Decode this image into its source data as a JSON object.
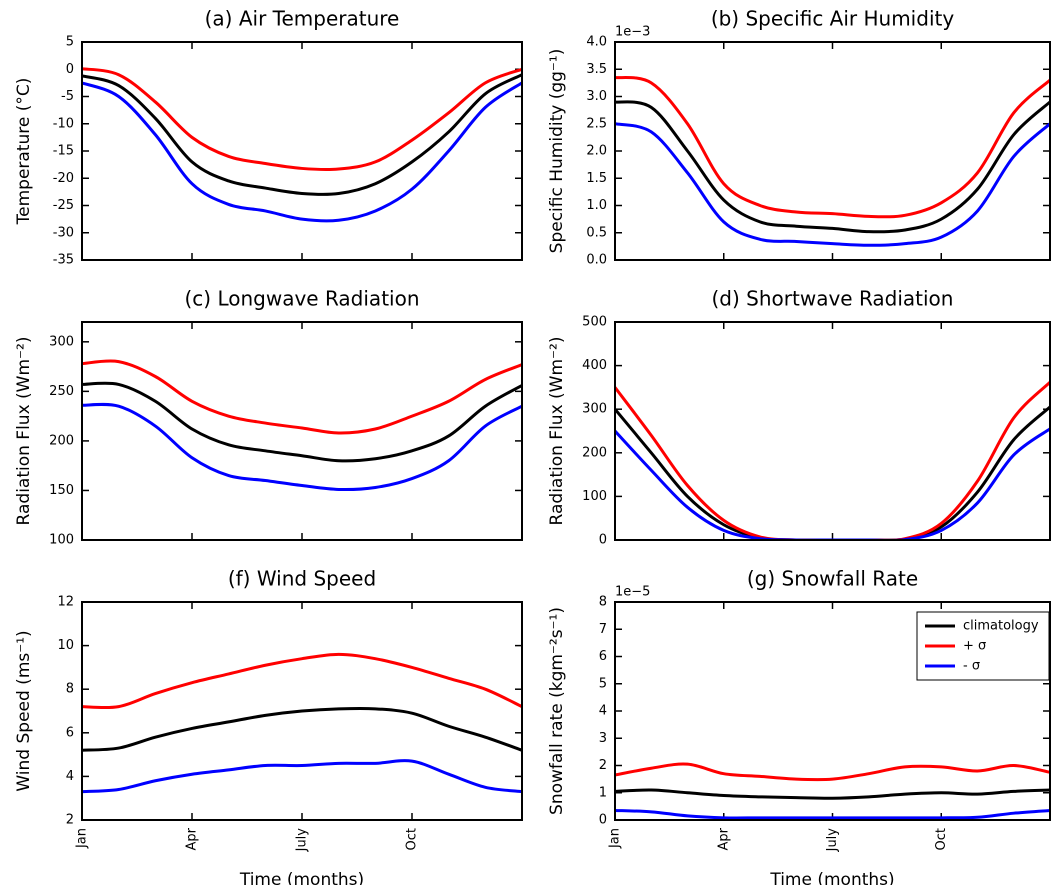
{
  "chart_data": [
    {
      "type": "line",
      "title": "(a) Air Temperature",
      "ylabel": "Temperature (°C)",
      "x": [
        0,
        1,
        2,
        3,
        4,
        5,
        6,
        7,
        8,
        9,
        10,
        11,
        12
      ],
      "xlim": [
        0,
        12
      ],
      "xticks": [
        0,
        3,
        6,
        9
      ],
      "ylim": [
        -35,
        5
      ],
      "yticks": [
        -35,
        -30,
        -25,
        -20,
        -15,
        -10,
        -5,
        0,
        5
      ],
      "series": [
        {
          "color": "#000000",
          "values": [
            -1.2,
            -3,
            -9,
            -17,
            -20.5,
            -21.8,
            -22.8,
            -22.8,
            -21,
            -17,
            -11.5,
            -4.5,
            -1
          ]
        },
        {
          "color": "#ff0000",
          "values": [
            0.1,
            -1,
            -6,
            -12.5,
            -16,
            -17.3,
            -18.2,
            -18.3,
            -17,
            -13,
            -8,
            -2.5,
            0
          ]
        },
        {
          "color": "#0000ff",
          "values": [
            -2.5,
            -5,
            -12,
            -21,
            -24.8,
            -26,
            -27.5,
            -27.7,
            -26,
            -22,
            -15,
            -7,
            -2.5
          ]
        }
      ]
    },
    {
      "type": "line",
      "title": "(b) Specific Air Humidity",
      "ylabel": "Specific Humidity (gg⁻¹)",
      "y_offset_label": "1e−3",
      "x": [
        0,
        1,
        2,
        3,
        4,
        5,
        6,
        7,
        8,
        9,
        10,
        11,
        12
      ],
      "xlim": [
        0,
        12
      ],
      "xticks": [
        0,
        3,
        6,
        9
      ],
      "ylim": [
        0,
        4
      ],
      "yticks": [
        {
          "value": 0,
          "label": "0.0"
        },
        {
          "value": 0.5,
          "label": "0.5"
        },
        {
          "value": 1,
          "label": "1.0"
        },
        {
          "value": 1.5,
          "label": "1.5"
        },
        {
          "value": 2,
          "label": "2.0"
        },
        {
          "value": 2.5,
          "label": "2.5"
        },
        {
          "value": 3,
          "label": "3.0"
        },
        {
          "value": 3.5,
          "label": "3.5"
        },
        {
          "value": 4,
          "label": "4.0"
        }
      ],
      "series": [
        {
          "color": "#000000",
          "values": [
            2.9,
            2.8,
            2.0,
            1.1,
            0.7,
            0.62,
            0.58,
            0.52,
            0.55,
            0.75,
            1.3,
            2.3,
            2.9
          ]
        },
        {
          "color": "#ff0000",
          "values": [
            3.35,
            3.25,
            2.5,
            1.4,
            1.0,
            0.88,
            0.85,
            0.8,
            0.82,
            1.05,
            1.6,
            2.7,
            3.3
          ]
        },
        {
          "color": "#0000ff",
          "values": [
            2.5,
            2.35,
            1.6,
            0.7,
            0.38,
            0.34,
            0.3,
            0.27,
            0.3,
            0.42,
            0.9,
            1.9,
            2.5
          ]
        }
      ]
    },
    {
      "type": "line",
      "title": "(c) Longwave Radiation",
      "ylabel": "Radiation Flux (Wm⁻²)",
      "x": [
        0,
        1,
        2,
        3,
        4,
        5,
        6,
        7,
        8,
        9,
        10,
        11,
        12
      ],
      "xlim": [
        0,
        12
      ],
      "xticks": [
        0,
        3,
        6,
        9
      ],
      "ylim": [
        100,
        320
      ],
      "yticks": [
        100,
        150,
        200,
        250,
        300
      ],
      "series": [
        {
          "color": "#000000",
          "values": [
            257,
            257,
            240,
            212,
            196,
            190,
            185,
            180,
            182,
            190,
            205,
            235,
            256
          ]
        },
        {
          "color": "#ff0000",
          "values": [
            278,
            280,
            265,
            240,
            225,
            218,
            213,
            208,
            212,
            225,
            240,
            262,
            277
          ]
        },
        {
          "color": "#0000ff",
          "values": [
            236,
            235,
            215,
            183,
            165,
            160,
            155,
            151,
            153,
            162,
            180,
            215,
            235
          ]
        }
      ]
    },
    {
      "type": "line",
      "title": "(d) Shortwave Radiation",
      "ylabel": "Radiation Flux (Wm⁻²)",
      "x": [
        0,
        1,
        2,
        3,
        4,
        5,
        6,
        7,
        8,
        9,
        10,
        11,
        12
      ],
      "xlim": [
        0,
        12
      ],
      "xticks": [
        0,
        3,
        6,
        9
      ],
      "ylim": [
        0,
        500
      ],
      "yticks": [
        0,
        100,
        200,
        300,
        400,
        500
      ],
      "series": [
        {
          "color": "#000000",
          "values": [
            300,
            200,
            100,
            35,
            5,
            0,
            0,
            0,
            2,
            30,
            110,
            230,
            305
          ]
        },
        {
          "color": "#ff0000",
          "values": [
            350,
            240,
            125,
            45,
            7,
            0,
            0,
            0,
            3,
            38,
            135,
            280,
            362
          ]
        },
        {
          "color": "#0000ff",
          "values": [
            250,
            160,
            75,
            22,
            3,
            0,
            0,
            0,
            1,
            22,
            85,
            195,
            255
          ]
        }
      ]
    },
    {
      "type": "line",
      "title": "(f) Wind Speed",
      "ylabel": "Wind Speed (ms⁻¹)",
      "xlabel": "Time (months)",
      "x": [
        0,
        1,
        2,
        3,
        4,
        5,
        6,
        7,
        8,
        9,
        10,
        11,
        12
      ],
      "xlim": [
        0,
        12
      ],
      "xticks": [
        {
          "value": 0,
          "label": "Jan"
        },
        {
          "value": 3,
          "label": "Apr"
        },
        {
          "value": 6,
          "label": "July"
        },
        {
          "value": 9,
          "label": "Oct"
        }
      ],
      "ylim": [
        2,
        12
      ],
      "yticks": [
        2,
        4,
        6,
        8,
        10,
        12
      ],
      "series": [
        {
          "color": "#000000",
          "values": [
            5.2,
            5.3,
            5.8,
            6.2,
            6.5,
            6.8,
            7.0,
            7.1,
            7.1,
            6.9,
            6.3,
            5.8,
            5.2
          ]
        },
        {
          "color": "#ff0000",
          "values": [
            7.2,
            7.2,
            7.8,
            8.3,
            8.7,
            9.1,
            9.4,
            9.6,
            9.4,
            9.0,
            8.5,
            8.0,
            7.2
          ]
        },
        {
          "color": "#0000ff",
          "values": [
            3.3,
            3.4,
            3.8,
            4.1,
            4.3,
            4.5,
            4.5,
            4.6,
            4.6,
            4.7,
            4.1,
            3.5,
            3.3
          ]
        }
      ]
    },
    {
      "type": "line",
      "title": "(g) Snowfall Rate",
      "ylabel": "Snowfall rate (kgm⁻²s⁻¹)",
      "xlabel": "Time (months)",
      "y_offset_label": "1e−5",
      "legend": "upper right",
      "x": [
        0,
        1,
        2,
        3,
        4,
        5,
        6,
        7,
        8,
        9,
        10,
        11,
        12
      ],
      "xlim": [
        0,
        12
      ],
      "xticks": [
        {
          "value": 0,
          "label": "Jan"
        },
        {
          "value": 3,
          "label": "Apr"
        },
        {
          "value": 6,
          "label": "July"
        },
        {
          "value": 9,
          "label": "Oct"
        }
      ],
      "ylim": [
        0,
        8
      ],
      "yticks": [
        0,
        1,
        2,
        3,
        4,
        5,
        6,
        7,
        8
      ],
      "series": [
        {
          "name": "climatology",
          "color": "#000000",
          "values": [
            1.05,
            1.1,
            1.0,
            0.9,
            0.85,
            0.82,
            0.8,
            0.85,
            0.95,
            1.0,
            0.95,
            1.05,
            1.1
          ]
        },
        {
          "name": "+ σ",
          "color": "#ff0000",
          "values": [
            1.65,
            1.9,
            2.05,
            1.7,
            1.6,
            1.5,
            1.5,
            1.7,
            1.95,
            1.95,
            1.8,
            2.0,
            1.75
          ]
        },
        {
          "name": "- σ",
          "color": "#0000ff",
          "values": [
            0.35,
            0.3,
            0.15,
            0.08,
            0.08,
            0.08,
            0.08,
            0.08,
            0.08,
            0.08,
            0.1,
            0.25,
            0.35
          ]
        }
      ]
    }
  ]
}
